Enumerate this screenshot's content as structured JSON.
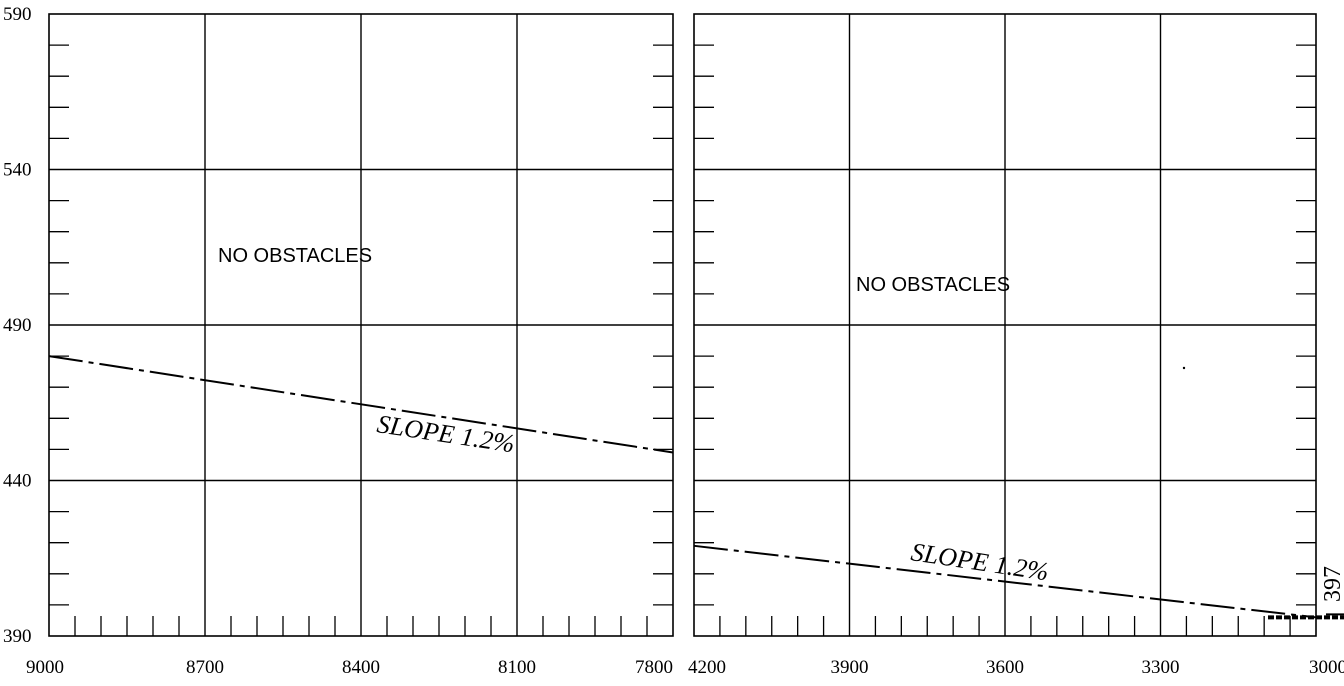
{
  "chart_data": [
    {
      "type": "line",
      "x": [
        9000,
        7800
      ],
      "ylim": [
        390,
        590
      ],
      "x_ticks": [
        "9000",
        "8700",
        "8400",
        "8100",
        "7800"
      ],
      "y_ticks": [
        "590",
        "540",
        "490",
        "440",
        "390"
      ],
      "grid": true,
      "annotations": {
        "note": "NO OBSTACLES",
        "slope": "SLOPE  1.2%"
      },
      "series": [
        {
          "points": [
            [
              9000,
              480
            ],
            [
              7800,
              449
            ]
          ]
        }
      ]
    },
    {
      "type": "line",
      "x": [
        4200,
        3000
      ],
      "ylim": [
        390,
        590
      ],
      "x_ticks": [
        "4200",
        "3900",
        "3600",
        "3300",
        "3000"
      ],
      "grid": true,
      "annotations": {
        "note": "NO OBSTACLES",
        "slope": "SLOPE  1.2%",
        "marker": "397"
      },
      "series": [
        {
          "points": [
            [
              4200,
              419
            ],
            [
              3000,
              396
            ]
          ]
        }
      ]
    }
  ],
  "colors": {
    "ink": "#000000",
    "background": "#ffffff"
  }
}
